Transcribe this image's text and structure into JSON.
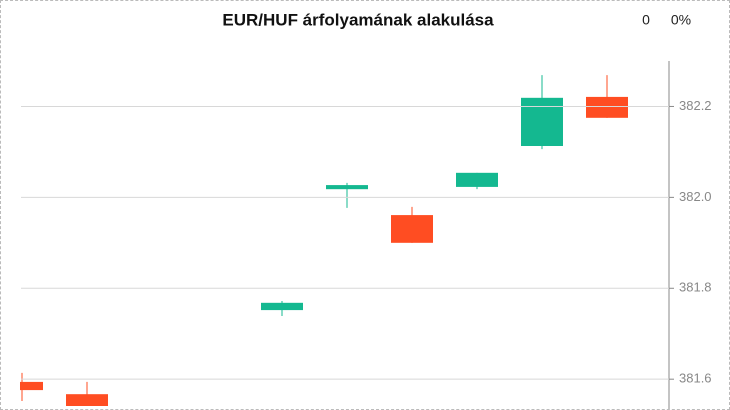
{
  "chart_data": {
    "type": "candlestick",
    "title": "EUR/HUF árfolyamának alakulása",
    "annotations": [
      "0",
      "0%"
    ],
    "categories": [
      null,
      null,
      null,
      null,
      null,
      null,
      null,
      null,
      null,
      null
    ],
    "open": [
      381.594,
      381.567,
      null,
      null,
      381.752,
      382.018,
      381.961,
      382.023,
      382.113,
      382.221
    ],
    "high": [
      381.614,
      381.594,
      null,
      null,
      381.772,
      382.032,
      381.979,
      382.054,
      382.269,
      382.269
    ],
    "low": [
      381.552,
      381.541,
      null,
      null,
      381.739,
      381.977,
      381.9,
      382.018,
      382.106,
      382.175
    ],
    "close": [
      381.576,
      381.541,
      null,
      null,
      381.768,
      382.027,
      381.9,
      382.054,
      382.219,
      382.175
    ],
    "up_color": "#14b890",
    "down_color": "#ff4d22",
    "ylim": [
      381.53,
      382.3
    ],
    "yticks": [
      {
        "value": 381.6,
        "label": "381.6"
      },
      {
        "value": 381.8,
        "label": "381.8"
      },
      {
        "value": 382.0,
        "label": "382.0"
      },
      {
        "value": 382.2,
        "label": "382.2"
      }
    ],
    "grid": true,
    "y_axis_side": "right"
  }
}
